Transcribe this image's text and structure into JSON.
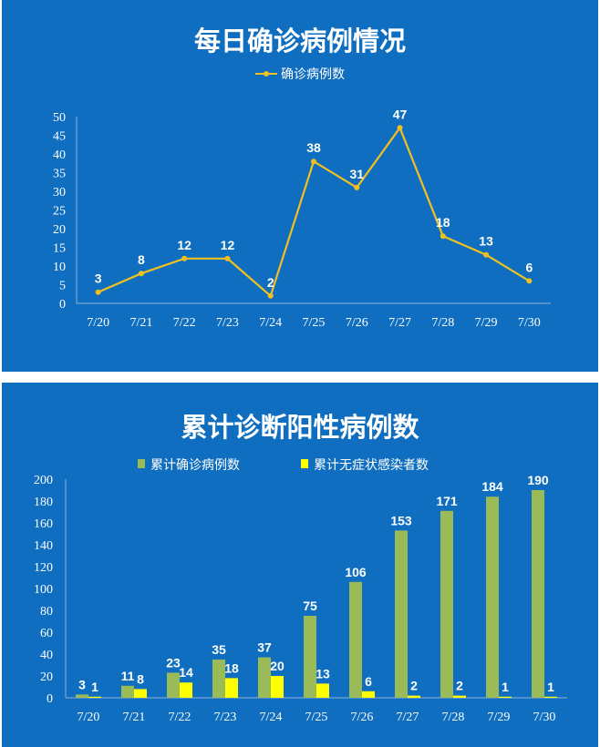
{
  "chart_data": [
    {
      "type": "line",
      "title": "每日确诊病例情况",
      "categories": [
        "7/20",
        "7/21",
        "7/22",
        "7/23",
        "7/24",
        "7/25",
        "7/26",
        "7/27",
        "7/28",
        "7/29",
        "7/30"
      ],
      "series": [
        {
          "name": "确诊病例数",
          "values": [
            3,
            8,
            12,
            12,
            2,
            38,
            31,
            47,
            18,
            13,
            6
          ]
        }
      ],
      "ylim": [
        0,
        50
      ],
      "yticks": [
        0,
        5,
        10,
        15,
        20,
        25,
        30,
        35,
        40,
        45,
        50
      ],
      "legend": "top",
      "grid": false,
      "color": "#f0c020"
    },
    {
      "type": "bar",
      "title": "累计诊断阳性病例数",
      "categories": [
        "7/20",
        "7/21",
        "7/22",
        "7/23",
        "7/24",
        "7/25",
        "7/26",
        "7/27",
        "7/28",
        "7/29",
        "7/30"
      ],
      "series": [
        {
          "name": "累计确诊病例数",
          "values": [
            3,
            11,
            23,
            35,
            37,
            75,
            106,
            153,
            171,
            184,
            190
          ],
          "color": "#9bbb59"
        },
        {
          "name": "累计无症状感染者数",
          "values": [
            1,
            8,
            14,
            18,
            20,
            13,
            6,
            2,
            2,
            1,
            1
          ],
          "color": "#ffff00"
        }
      ],
      "ylim": [
        0,
        200
      ],
      "yticks": [
        0,
        20,
        40,
        60,
        80,
        100,
        120,
        140,
        160,
        180,
        200
      ],
      "legend": "top",
      "grid": false
    }
  ]
}
